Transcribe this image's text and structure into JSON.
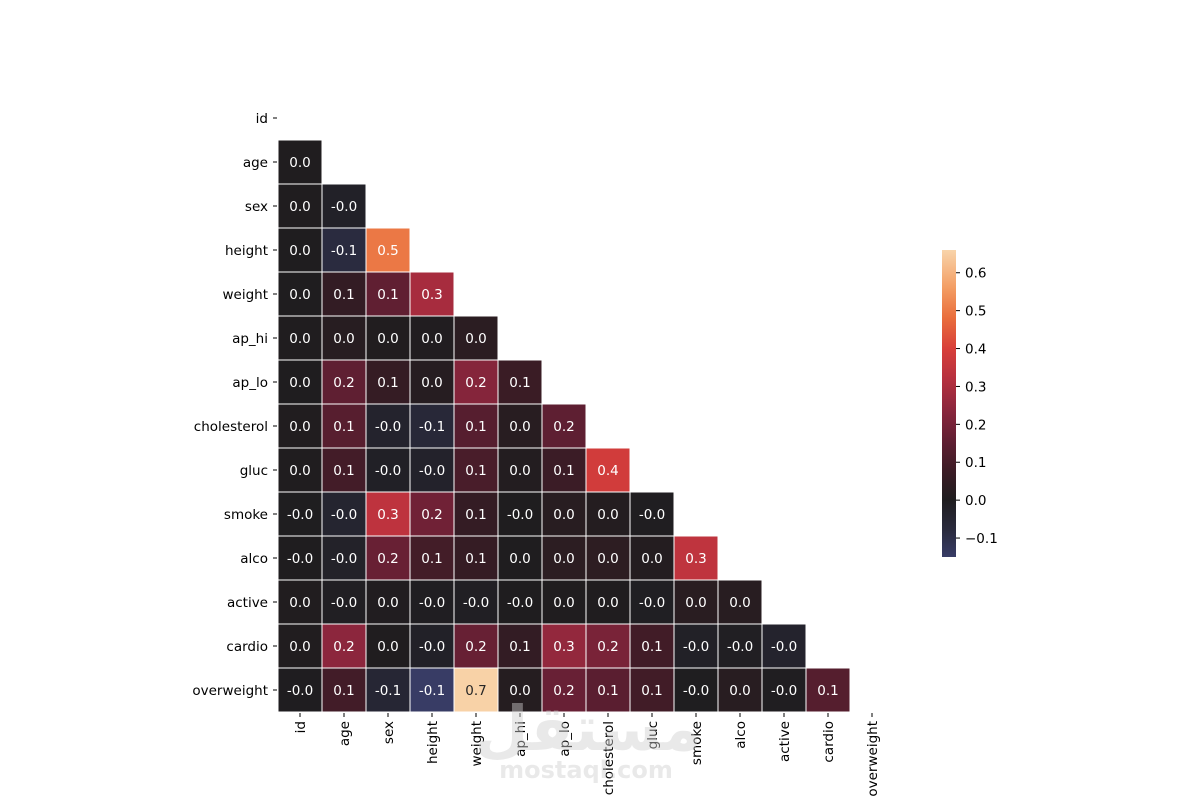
{
  "chart_data": {
    "type": "heatmap",
    "title": "",
    "xlabel": "",
    "ylabel": "",
    "variables": [
      "id",
      "age",
      "sex",
      "height",
      "weight",
      "ap_hi",
      "ap_lo",
      "cholesterol",
      "gluc",
      "smoke",
      "alco",
      "active",
      "cardio",
      "overweight"
    ],
    "mask": "upper-triangle-including-diagonal",
    "cell_labels": [
      [],
      [
        "0.0"
      ],
      [
        "0.0",
        "-0.0"
      ],
      [
        "0.0",
        "-0.1",
        "0.5"
      ],
      [
        "0.0",
        "0.1",
        "0.1",
        "0.3"
      ],
      [
        "0.0",
        "0.0",
        "0.0",
        "0.0",
        "0.0"
      ],
      [
        "0.0",
        "0.2",
        "0.1",
        "0.0",
        "0.2",
        "0.1"
      ],
      [
        "0.0",
        "0.1",
        "-0.0",
        "-0.1",
        "0.1",
        "0.0",
        "0.2"
      ],
      [
        "0.0",
        "0.1",
        "-0.0",
        "-0.0",
        "0.1",
        "0.0",
        "0.1",
        "0.4"
      ],
      [
        "-0.0",
        "-0.0",
        "0.3",
        "0.2",
        "0.1",
        "-0.0",
        "0.0",
        "0.0",
        "-0.0"
      ],
      [
        "-0.0",
        "-0.0",
        "0.2",
        "0.1",
        "0.1",
        "0.0",
        "0.0",
        "0.0",
        "0.0",
        "0.3"
      ],
      [
        "0.0",
        "-0.0",
        "0.0",
        "-0.0",
        "-0.0",
        "-0.0",
        "0.0",
        "0.0",
        "-0.0",
        "0.0",
        "0.0"
      ],
      [
        "0.0",
        "0.2",
        "0.0",
        "-0.0",
        "0.2",
        "0.1",
        "0.3",
        "0.2",
        "0.1",
        "-0.0",
        "-0.0",
        "-0.0"
      ],
      [
        "-0.0",
        "0.1",
        "-0.1",
        "-0.1",
        "0.7",
        "0.0",
        "0.2",
        "0.1",
        "0.1",
        "-0.0",
        "0.0",
        "-0.0",
        "0.1"
      ]
    ],
    "values": [
      [],
      [
        0.003
      ],
      [
        0.003,
        -0.023
      ],
      [
        0.0,
        -0.081,
        0.499
      ],
      [
        0.0,
        0.054,
        0.156,
        0.291
      ],
      [
        0.003,
        0.021,
        0.005,
        0.006,
        0.031
      ],
      [
        0.0,
        0.153,
        0.059,
        0.018,
        0.226,
        0.072
      ],
      [
        0.004,
        0.137,
        -0.036,
        -0.064,
        0.134,
        0.023,
        0.151
      ],
      [
        0.002,
        0.092,
        -0.018,
        -0.03,
        0.107,
        0.011,
        0.075,
        0.384
      ],
      [
        -0.003,
        -0.044,
        0.338,
        0.187,
        0.056,
        -0.001,
        0.023,
        0.014,
        -0.005
      ],
      [
        -0.001,
        -0.026,
        0.171,
        0.094,
        0.059,
        0.001,
        0.034,
        0.038,
        0.014,
        0.341
      ],
      [
        0.004,
        -0.011,
        0.006,
        -0.007,
        -0.014,
        -0.001,
        0.002,
        0.002,
        -0.01,
        0.026,
        0.025
      ],
      [
        0.004,
        0.24,
        0.002,
        -0.024,
        0.17,
        0.054,
        0.253,
        0.203,
        0.088,
        -0.02,
        -0.011,
        -0.037
      ],
      [
        -0.002,
        0.09,
        -0.053,
        -0.149,
        0.656,
        0.017,
        0.172,
        0.142,
        0.088,
        -0.003,
        0.025,
        -0.004,
        0.131
      ]
    ],
    "colorbar": {
      "ticks": [
        -0.1,
        0.0,
        0.1,
        0.2,
        0.3,
        0.4,
        0.5,
        0.6
      ],
      "tick_labels": [
        "−0.1",
        "0.0",
        "0.1",
        "0.2",
        "0.3",
        "0.4",
        "0.5",
        "0.6"
      ],
      "vmin": -0.15,
      "vmax": 0.66,
      "center": 0.0
    },
    "grid": false,
    "cell_borders": "white",
    "colormap": "diverging: dark navy (negative) → near-black (0) → crimson → orange → pale peach (positive)"
  },
  "watermark": {
    "logo_text": "مستقل",
    "domain_text": "mostaql.com"
  }
}
